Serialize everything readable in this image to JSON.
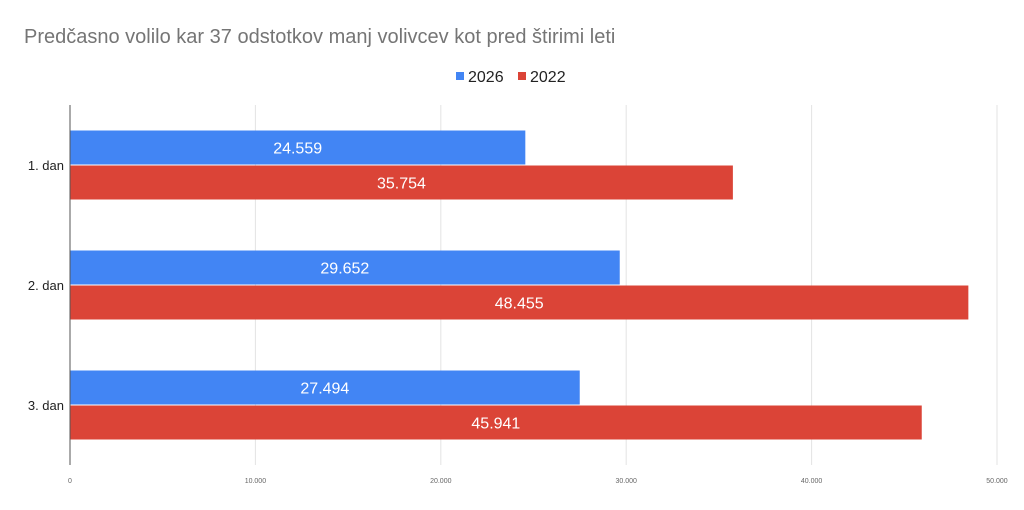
{
  "chart_data": {
    "type": "bar",
    "orientation": "horizontal",
    "title": "Predčasno volilo kar 37 odstotkov manj volivcev kot pred štirimi leti",
    "categories": [
      "1. dan",
      "2. dan",
      "3. dan"
    ],
    "series": [
      {
        "name": "2026",
        "color": "#4285f4",
        "values": [
          24559,
          29652,
          27494
        ],
        "labels": [
          "24.559",
          "29.652",
          "27.494"
        ]
      },
      {
        "name": "2022",
        "color": "#db4437",
        "values": [
          35754,
          48455,
          45941
        ],
        "labels": [
          "35.754",
          "48.455",
          "45.941"
        ]
      }
    ],
    "xlim": [
      0,
      50000
    ],
    "xticks": [
      0,
      10000,
      20000,
      30000,
      40000,
      50000
    ],
    "xtick_labels": [
      "0",
      "10.000",
      "20.000",
      "30.000",
      "40.000",
      "50.000"
    ],
    "legend": "top-center",
    "grid": true
  }
}
